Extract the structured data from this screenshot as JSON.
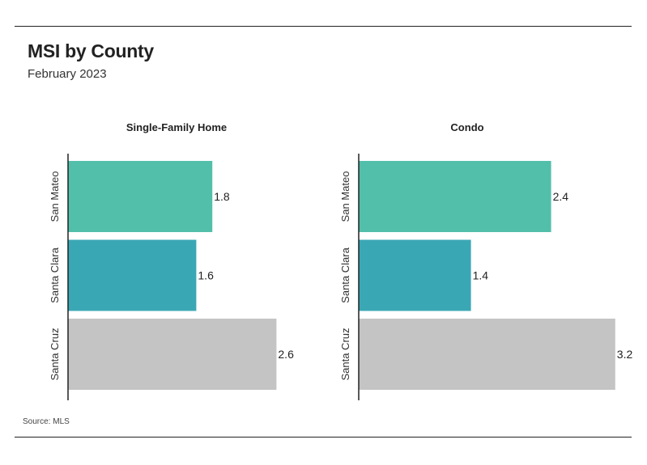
{
  "header": {
    "title": "MSI by County",
    "subtitle": "February 2023"
  },
  "footer": {
    "source": "Source: MLS"
  },
  "colors": {
    "San Mateo": "#52bfaa",
    "Santa Clara": "#3aa7b4",
    "Santa Cruz": "#c4c4c4"
  },
  "chart_data": [
    {
      "type": "bar",
      "orientation": "horizontal",
      "title": "Single-Family Home",
      "categories": [
        "San Mateo",
        "Santa Clara",
        "Santa Cruz"
      ],
      "values": [
        1.8,
        1.6,
        2.6
      ],
      "data_labels": [
        "1.8",
        "1.6",
        "2.6"
      ],
      "xlim": [
        0,
        3.5
      ],
      "grid": false
    },
    {
      "type": "bar",
      "orientation": "horizontal",
      "title": "Condo",
      "categories": [
        "San Mateo",
        "Santa Clara",
        "Santa Cruz"
      ],
      "values": [
        2.4,
        1.4,
        3.2
      ],
      "data_labels": [
        "2.4",
        "1.4",
        "3.2"
      ],
      "xlim": [
        0,
        3.5
      ],
      "grid": false
    }
  ]
}
